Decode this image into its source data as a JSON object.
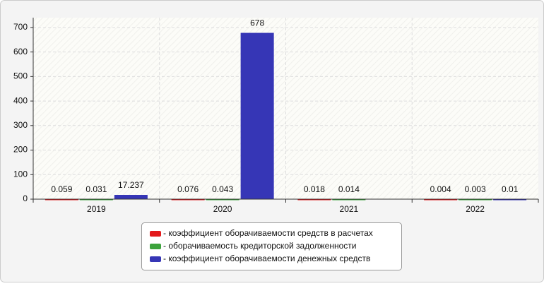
{
  "chart_data": {
    "type": "bar",
    "categories": [
      "2019",
      "2020",
      "2021",
      "2022"
    ],
    "series": [
      {
        "name": "- коэффициент оборачиваемости средств в расчетах",
        "color": "#e31a1c",
        "values": [
          0.059,
          0.076,
          0.018,
          0.004
        ]
      },
      {
        "name": "- оборачиваемость кредиторской задолженности",
        "color": "#3ca33c",
        "values": [
          0.031,
          0.043,
          0.014,
          0.003
        ]
      },
      {
        "name": "- коэффициент оборачиваемости денежных средств",
        "color": "#3636b6",
        "values": [
          17.237,
          678,
          null,
          0.01
        ]
      }
    ],
    "ylim": [
      0,
      740
    ],
    "yticks": [
      0,
      100,
      200,
      300,
      400,
      500,
      600,
      700
    ],
    "grid": true,
    "legend": "bottom"
  }
}
